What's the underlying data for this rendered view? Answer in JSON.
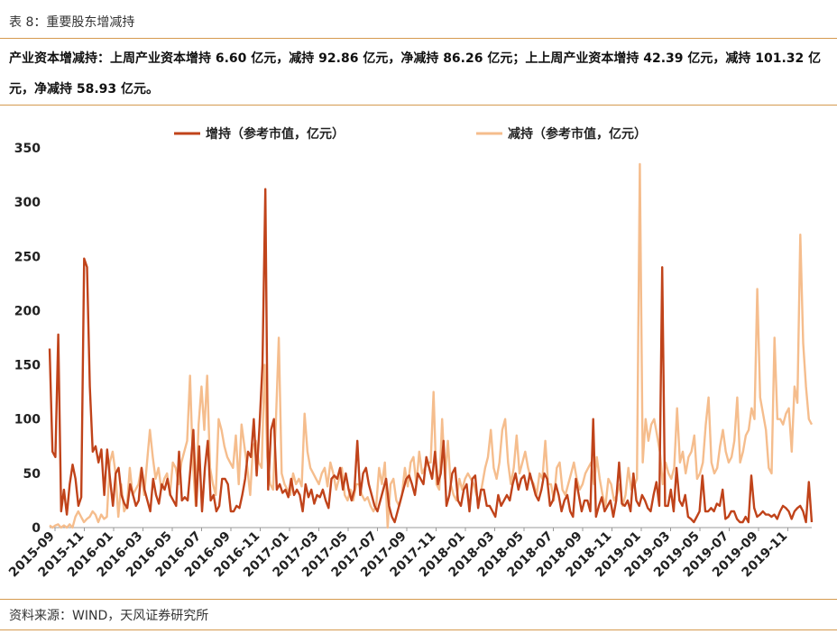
{
  "header": {
    "title": "表 8：重要股东增减持",
    "summary": "产业资本增减持：上周产业资本增持 6.60 亿元，减持 92.86 亿元，净减持 86.26 亿元；上上周产业资本增持 42.39 亿元，减持 101.32 亿元，净减持 58.93 亿元。"
  },
  "footer": {
    "source": "资料来源：WIND，天风证券研究所"
  },
  "colors": {
    "increase": "#c0431a",
    "decrease": "#f5bd8d",
    "rule": "#d59a4f"
  },
  "chart_data": {
    "type": "line",
    "ylim": [
      0,
      350
    ],
    "yticks": [
      0,
      50,
      100,
      150,
      200,
      250,
      300,
      350
    ],
    "xtick_labels": [
      "2015-09",
      "2015-11",
      "2016-01",
      "2016-03",
      "2016-05",
      "2016-07",
      "2016-09",
      "2016-11",
      "2017-01",
      "2017-03",
      "2017-05",
      "2017-07",
      "2017-09",
      "2017-11",
      "2018-01",
      "2018-03",
      "2018-05",
      "2018-07",
      "2018-09",
      "2018-11",
      "2019-01",
      "2019-03",
      "2019-05",
      "2019-07",
      "2019-09",
      "2019-11"
    ],
    "legend_position": "top",
    "series": [
      {
        "name": "增持（参考市值，亿元）",
        "values": [
          165,
          70,
          65,
          178,
          15,
          35,
          12,
          40,
          58,
          45,
          20,
          28,
          248,
          240,
          130,
          70,
          75,
          60,
          72,
          30,
          72,
          45,
          20,
          50,
          55,
          30,
          22,
          18,
          40,
          30,
          20,
          25,
          55,
          35,
          25,
          15,
          45,
          30,
          22,
          40,
          35,
          45,
          30,
          25,
          20,
          70,
          25,
          28,
          25,
          55,
          90,
          20,
          75,
          15,
          55,
          80,
          25,
          30,
          15,
          20,
          45,
          45,
          40,
          15,
          15,
          20,
          18,
          30,
          45,
          70,
          65,
          100,
          48,
          95,
          150,
          312,
          35,
          90,
          100,
          35,
          40,
          32,
          35,
          28,
          45,
          30,
          35,
          30,
          15,
          40,
          28,
          35,
          22,
          30,
          28,
          35,
          25,
          18,
          45,
          48,
          45,
          55,
          35,
          50,
          35,
          25,
          35,
          80,
          30,
          50,
          55,
          40,
          30,
          20,
          15,
          25,
          35,
          45,
          20,
          10,
          5,
          15,
          25,
          35,
          45,
          48,
          40,
          30,
          50,
          45,
          40,
          65,
          55,
          45,
          70,
          40,
          50,
          80,
          20,
          30,
          50,
          55,
          25,
          20,
          35,
          40,
          15,
          45,
          48,
          18,
          35,
          35,
          20,
          20,
          15,
          10,
          30,
          20,
          25,
          30,
          25,
          40,
          50,
          35,
          45,
          48,
          35,
          50,
          40,
          30,
          25,
          35,
          50,
          45,
          20,
          25,
          40,
          30,
          15,
          25,
          30,
          15,
          10,
          45,
          30,
          15,
          25,
          25,
          15,
          100,
          10,
          20,
          28,
          15,
          20,
          25,
          10,
          25,
          60,
          22,
          20,
          25,
          15,
          50,
          25,
          20,
          30,
          25,
          18,
          15,
          30,
          42,
          20,
          240,
          20,
          20,
          35,
          15,
          55,
          25,
          20,
          30,
          10,
          8,
          5,
          10,
          15,
          48,
          15,
          15,
          18,
          15,
          22,
          20,
          35,
          8,
          10,
          15,
          15,
          8,
          5,
          5,
          10,
          5,
          48,
          18,
          10,
          12,
          15,
          12,
          12,
          10,
          12,
          8,
          15,
          20,
          18,
          15,
          8,
          15,
          18,
          20,
          15,
          5,
          42,
          5
        ]
      },
      {
        "name": "减持（参考市值，亿元）",
        "values": [
          2,
          0,
          2,
          3,
          0,
          2,
          0,
          3,
          0,
          10,
          15,
          10,
          5,
          8,
          10,
          15,
          12,
          5,
          12,
          8,
          10,
          60,
          70,
          50,
          10,
          40,
          15,
          20,
          55,
          30,
          35,
          40,
          55,
          30,
          60,
          90,
          65,
          45,
          55,
          35,
          45,
          50,
          30,
          60,
          55,
          40,
          60,
          70,
          80,
          140,
          60,
          20,
          95,
          130,
          90,
          140,
          55,
          40,
          30,
          100,
          90,
          75,
          65,
          60,
          55,
          85,
          40,
          95,
          75,
          55,
          30,
          75,
          80,
          60,
          55,
          150,
          65,
          40,
          35,
          100,
          175,
          50,
          40,
          35,
          30,
          50,
          40,
          45,
          38,
          105,
          70,
          55,
          50,
          45,
          40,
          50,
          55,
          38,
          60,
          50,
          35,
          45,
          55,
          30,
          25,
          35,
          25,
          40,
          40,
          30,
          25,
          28,
          20,
          15,
          20,
          55,
          40,
          60,
          0,
          40,
          45,
          25,
          20,
          30,
          55,
          38,
          60,
          65,
          40,
          70,
          50,
          55,
          60,
          60,
          125,
          40,
          35,
          100,
          45,
          80,
          40,
          30,
          25,
          45,
          35,
          45,
          50,
          45,
          40,
          30,
          25,
          40,
          55,
          65,
          90,
          55,
          45,
          60,
          90,
          100,
          60,
          40,
          55,
          85,
          50,
          60,
          70,
          55,
          45,
          40,
          30,
          50,
          45,
          80,
          40,
          40,
          25,
          55,
          60,
          35,
          30,
          40,
          50,
          60,
          45,
          35,
          40,
          50,
          55,
          60,
          40,
          65,
          45,
          30,
          20,
          45,
          40,
          25,
          30,
          40,
          20,
          30,
          55,
          35,
          38,
          45,
          335,
          60,
          100,
          80,
          95,
          100,
          85,
          70,
          40,
          60,
          50,
          45,
          55,
          110,
          60,
          70,
          50,
          65,
          70,
          85,
          45,
          50,
          60,
          95,
          120,
          60,
          50,
          55,
          75,
          90,
          70,
          60,
          65,
          80,
          120,
          60,
          70,
          85,
          90,
          110,
          100,
          220,
          120,
          105,
          90,
          55,
          50,
          175,
          100,
          100,
          95,
          105,
          110,
          70,
          130,
          115,
          270,
          170,
          130,
          100,
          95
        ]
      }
    ]
  }
}
